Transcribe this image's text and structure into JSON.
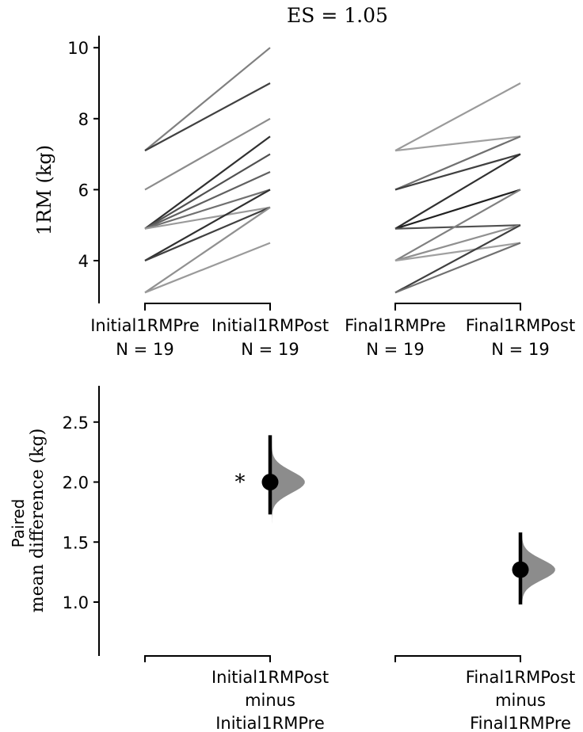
{
  "chart_data": [
    {
      "type": "slopegraph",
      "title": "ES = 1.05",
      "ylabel": "1RM (kg)",
      "ylim": [
        3,
        10.3
      ],
      "yticks": [
        4,
        6,
        8,
        10
      ],
      "groups": [
        {
          "label": "Initial1RMPre",
          "n_label": "N = 19"
        },
        {
          "label": "Initial1RMPost",
          "n_label": "N = 19"
        },
        {
          "label": "Final1RMPre",
          "n_label": "N = 19"
        },
        {
          "label": "Final1RMPost",
          "n_label": "N = 19"
        }
      ],
      "pairs": [
        {
          "pre": "Initial1RMPre",
          "post": "Initial1RMPost",
          "lines": [
            [
              7.1,
              10.0,
              "#808080"
            ],
            [
              7.1,
              9.0,
              "#404040"
            ],
            [
              6.0,
              8.0,
              "#8c8c8c"
            ],
            [
              4.9,
              7.5,
              "#303030"
            ],
            [
              4.9,
              7.0,
              "#505050"
            ],
            [
              4.9,
              6.5,
              "#606060"
            ],
            [
              4.9,
              6.0,
              "#707070"
            ],
            [
              4.9,
              5.5,
              "#9a9a9a"
            ],
            [
              4.0,
              6.0,
              "#303030"
            ],
            [
              4.0,
              5.5,
              "#404040"
            ],
            [
              3.1,
              5.5,
              "#909090"
            ],
            [
              3.1,
              4.5,
              "#9a9a9a"
            ]
          ]
        },
        {
          "pre": "Final1RMPre",
          "post": "Final1RMPost",
          "lines": [
            [
              7.1,
              9.0,
              "#9a9a9a"
            ],
            [
              7.1,
              7.5,
              "#a0a0a0"
            ],
            [
              6.0,
              7.5,
              "#707070"
            ],
            [
              6.0,
              7.0,
              "#404040"
            ],
            [
              4.9,
              7.0,
              "#303030"
            ],
            [
              4.9,
              6.0,
              "#202020"
            ],
            [
              4.9,
              5.0,
              "#505050"
            ],
            [
              4.0,
              6.0,
              "#808080"
            ],
            [
              4.0,
              5.0,
              "#909090"
            ],
            [
              4.0,
              4.5,
              "#a0a0a0"
            ],
            [
              3.1,
              5.0,
              "#404040"
            ],
            [
              3.1,
              4.5,
              "#707070"
            ]
          ]
        }
      ]
    },
    {
      "type": "estimation",
      "ylabel_lines": [
        "Paired",
        "mean difference (kg)"
      ],
      "ylim": [
        0.45,
        2.8
      ],
      "yticks": [
        "1.0",
        "1.5",
        "2.0",
        "2.5"
      ],
      "annotation": "*",
      "effects": [
        {
          "label_lines": [
            "Initial1RMPost",
            "minus",
            "Initial1RMPre"
          ],
          "mean": 2.0,
          "ci": [
            1.73,
            2.39
          ],
          "dist_range": [
            1.49,
            2.69
          ],
          "dist_sd": 0.09
        },
        {
          "label_lines": [
            "Final1RMPost",
            "minus",
            "Final1RMPre"
          ],
          "mean": 1.27,
          "ci": [
            0.98,
            1.58
          ],
          "dist_range": [
            0.69,
            1.76
          ],
          "dist_sd": 0.085
        }
      ]
    }
  ]
}
